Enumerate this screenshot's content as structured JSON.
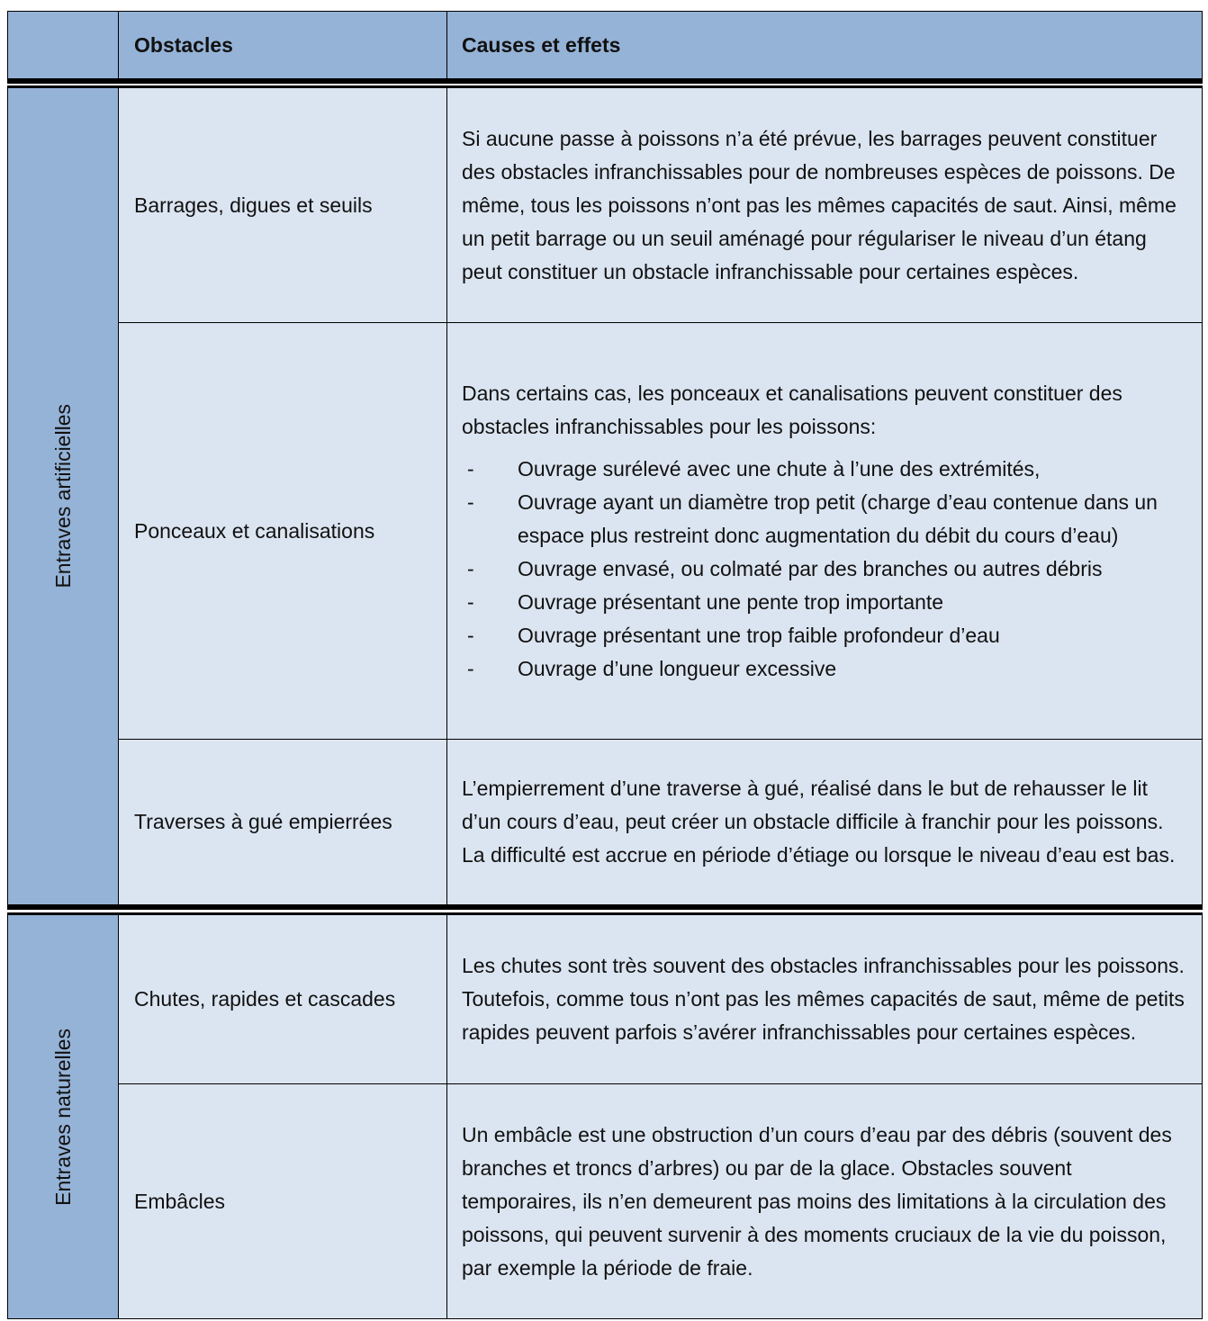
{
  "header": {
    "col1": "",
    "col2": "Obstacles",
    "col3": "Causes et effets"
  },
  "groups": [
    {
      "label": "Entraves artificielles",
      "rows": [
        {
          "obstacle": "Barrages, digues et seuils",
          "text": "Si aucune passe à poissons n’a été prévue, les barrages peuvent constituer des obstacles infranchissables pour de nombreuses espèces de poissons.  De même, tous les poissons n’ont pas les mêmes capacités de saut. Ainsi, même un petit barrage ou un seuil aménagé pour régulariser le niveau d’un étang peut constituer un obstacle infranchissable pour certaines espèces."
        },
        {
          "obstacle": "Ponceaux et canalisations",
          "text": "Dans certains cas, les ponceaux et canalisations peuvent constituer des obstacles infranchissables pour les poissons:",
          "bullets": [
            "Ouvrage surélevé avec une chute à l’une des extrémités,",
            "Ouvrage ayant un diamètre trop petit (charge d’eau contenue dans un espace plus restreint donc augmentation du débit du cours d’eau)",
            "Ouvrage envasé, ou colmaté par des branches ou autres débris",
            "Ouvrage présentant une pente trop importante",
            "Ouvrage présentant une trop faible profondeur d’eau",
            "Ouvrage d’une longueur excessive"
          ]
        },
        {
          "obstacle": "Traverses à gué empierrées",
          "text": "L’empierrement d’une traverse à gué, réalisé dans le but de rehausser le lit d’un cours d’eau, peut créer un obstacle difficile à franchir pour les poissons. La difficulté est accrue en période d’étiage ou lorsque le niveau d’eau est bas."
        }
      ]
    },
    {
      "label": "Entraves naturelles",
      "rows": [
        {
          "obstacle": "Chutes, rapides et cascades",
          "text": "Les chutes sont très souvent des obstacles infranchissables pour les poissons. Toutefois, comme tous n’ont pas les mêmes capacités de saut, même de petits rapides peuvent parfois s’avérer infranchissables pour certaines espèces."
        },
        {
          "obstacle": "Embâcles",
          "text": "Un embâcle est une obstruction d’un cours d’eau par des débris (souvent des branches et troncs d’arbres) ou par de la glace. Obstacles souvent temporaires, ils n’en demeurent pas moins des limitations à la circulation des poissons, qui peuvent survenir à des moments cruciaux de la vie du poisson, par exemple la période de fraie."
        }
      ]
    }
  ],
  "bullet_marker": "-"
}
